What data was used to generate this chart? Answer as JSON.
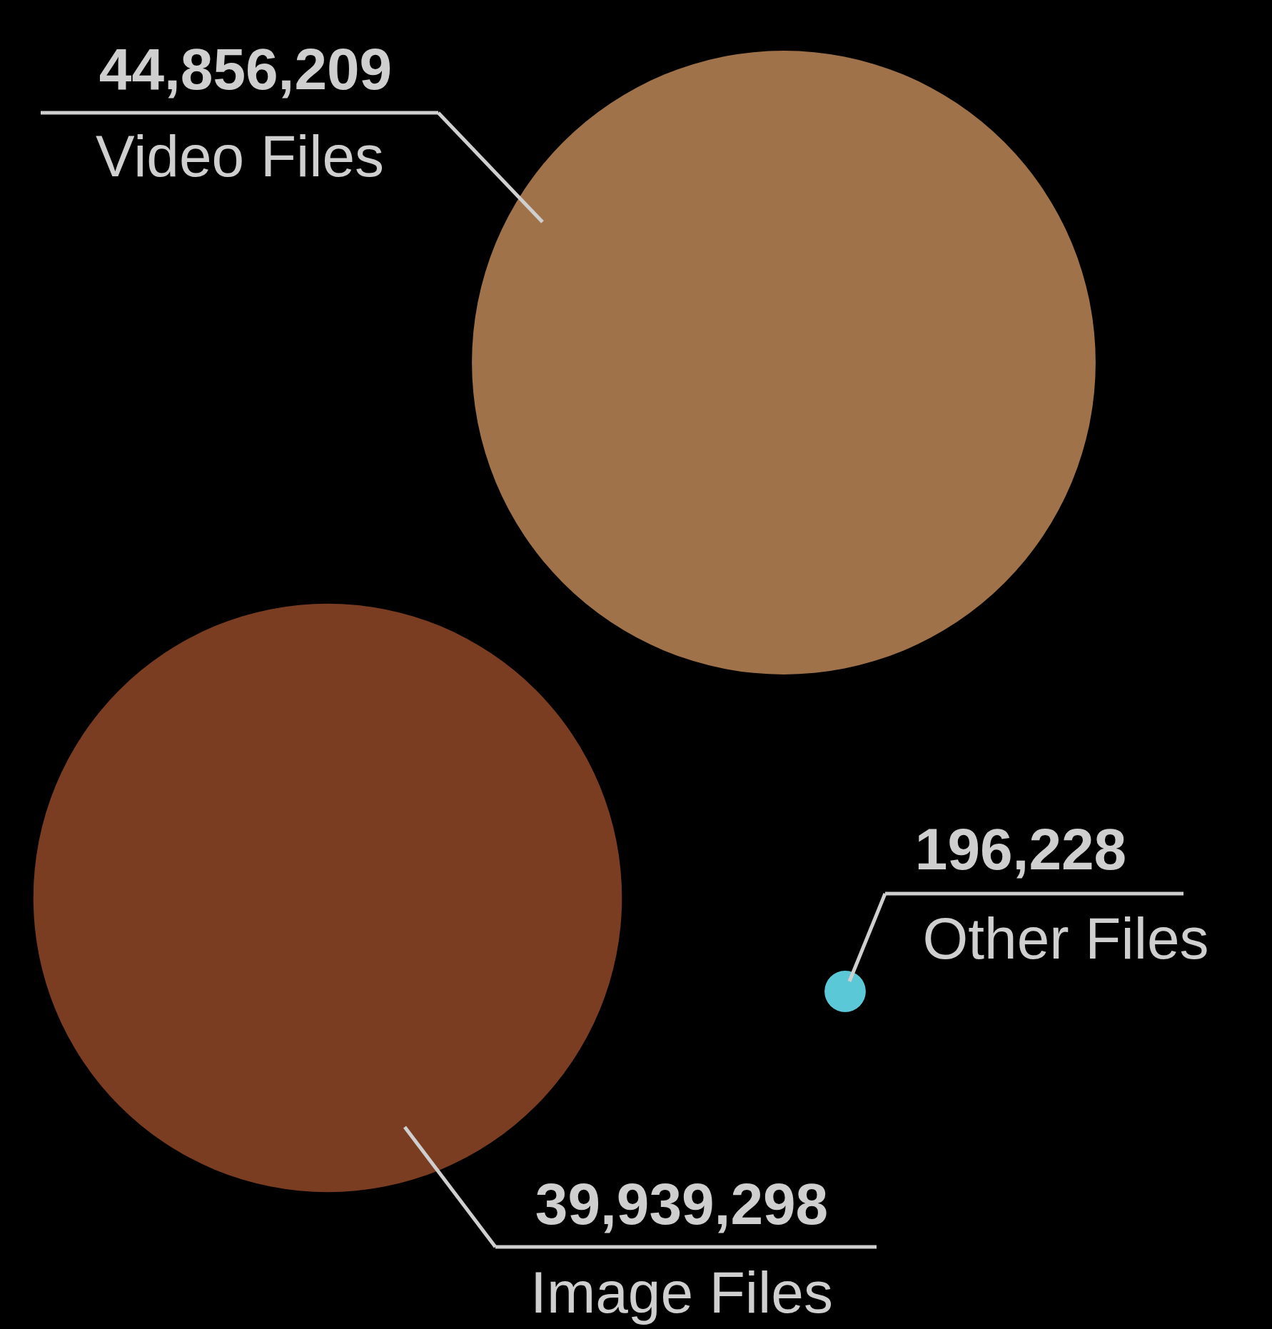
{
  "chart_data": {
    "type": "other",
    "categories": [
      "Video Files",
      "Image Files",
      "Other Files"
    ],
    "values": [
      44856209,
      39939298,
      196228
    ],
    "value_labels": [
      "44,856,209",
      "39,939,298",
      "196,228"
    ],
    "colors": [
      "#a0724a",
      "#7a3d22",
      "#5bc8d8"
    ]
  }
}
